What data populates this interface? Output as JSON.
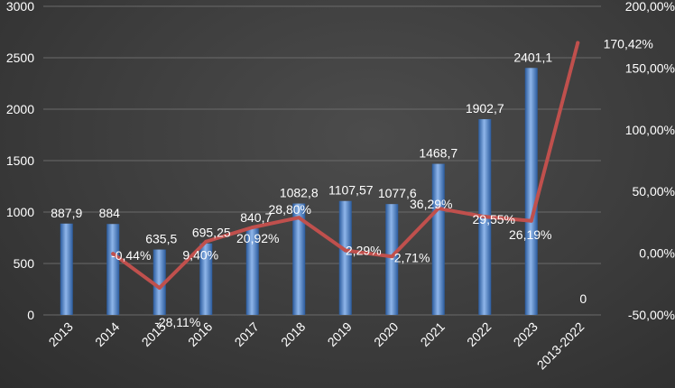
{
  "chart_data": {
    "type": "bar",
    "categories": [
      "2013",
      "2014",
      "2015",
      "2016",
      "2017",
      "2018",
      "2019",
      "2020",
      "2021",
      "2022",
      "2023",
      "2013-2022"
    ],
    "series": [
      {
        "type": "bar",
        "axis": "left",
        "values": [
          887.9,
          884,
          635.5,
          695.25,
          840.7,
          1082.8,
          1107.57,
          1077.6,
          1468.7,
          1902.7,
          2401.1,
          0
        ],
        "labels": [
          "887,9",
          "884",
          "635,5",
          "695,25",
          "840,7",
          "1082,8",
          "1107,57",
          "1077,6",
          "1468,7",
          "1902,7",
          "2401,1",
          "0"
        ],
        "color": "#4f81bd"
      },
      {
        "type": "line",
        "axis": "right",
        "values": [
          null,
          -0.44,
          -28.11,
          9.4,
          20.92,
          28.8,
          2.29,
          -2.71,
          36.29,
          29.55,
          26.19,
          170.42
        ],
        "labels": [
          "",
          "-0,44%",
          "-28,11%",
          "9,40%",
          "20,92%",
          "28,80%",
          "2,29%",
          "-2,71%",
          "36,29%",
          "29,55%",
          "26,19%",
          "170,42%"
        ],
        "color": "#c0504d"
      }
    ],
    "y_left": {
      "ylim": [
        0,
        3000
      ],
      "ticks": [
        0,
        500,
        1000,
        1500,
        2000,
        2500,
        3000
      ],
      "tick_labels": [
        "0",
        "500",
        "1000",
        "1500",
        "2000",
        "2500",
        "3000"
      ]
    },
    "y_right": {
      "ylim": [
        -50,
        200
      ],
      "ticks": [
        -50,
        0,
        50,
        100,
        150,
        200
      ],
      "tick_labels": [
        "-50,00%",
        "0,00%",
        "50,00%",
        "100,00%",
        "150,00%",
        "200,00%"
      ]
    },
    "grid": true,
    "legend": "none"
  }
}
